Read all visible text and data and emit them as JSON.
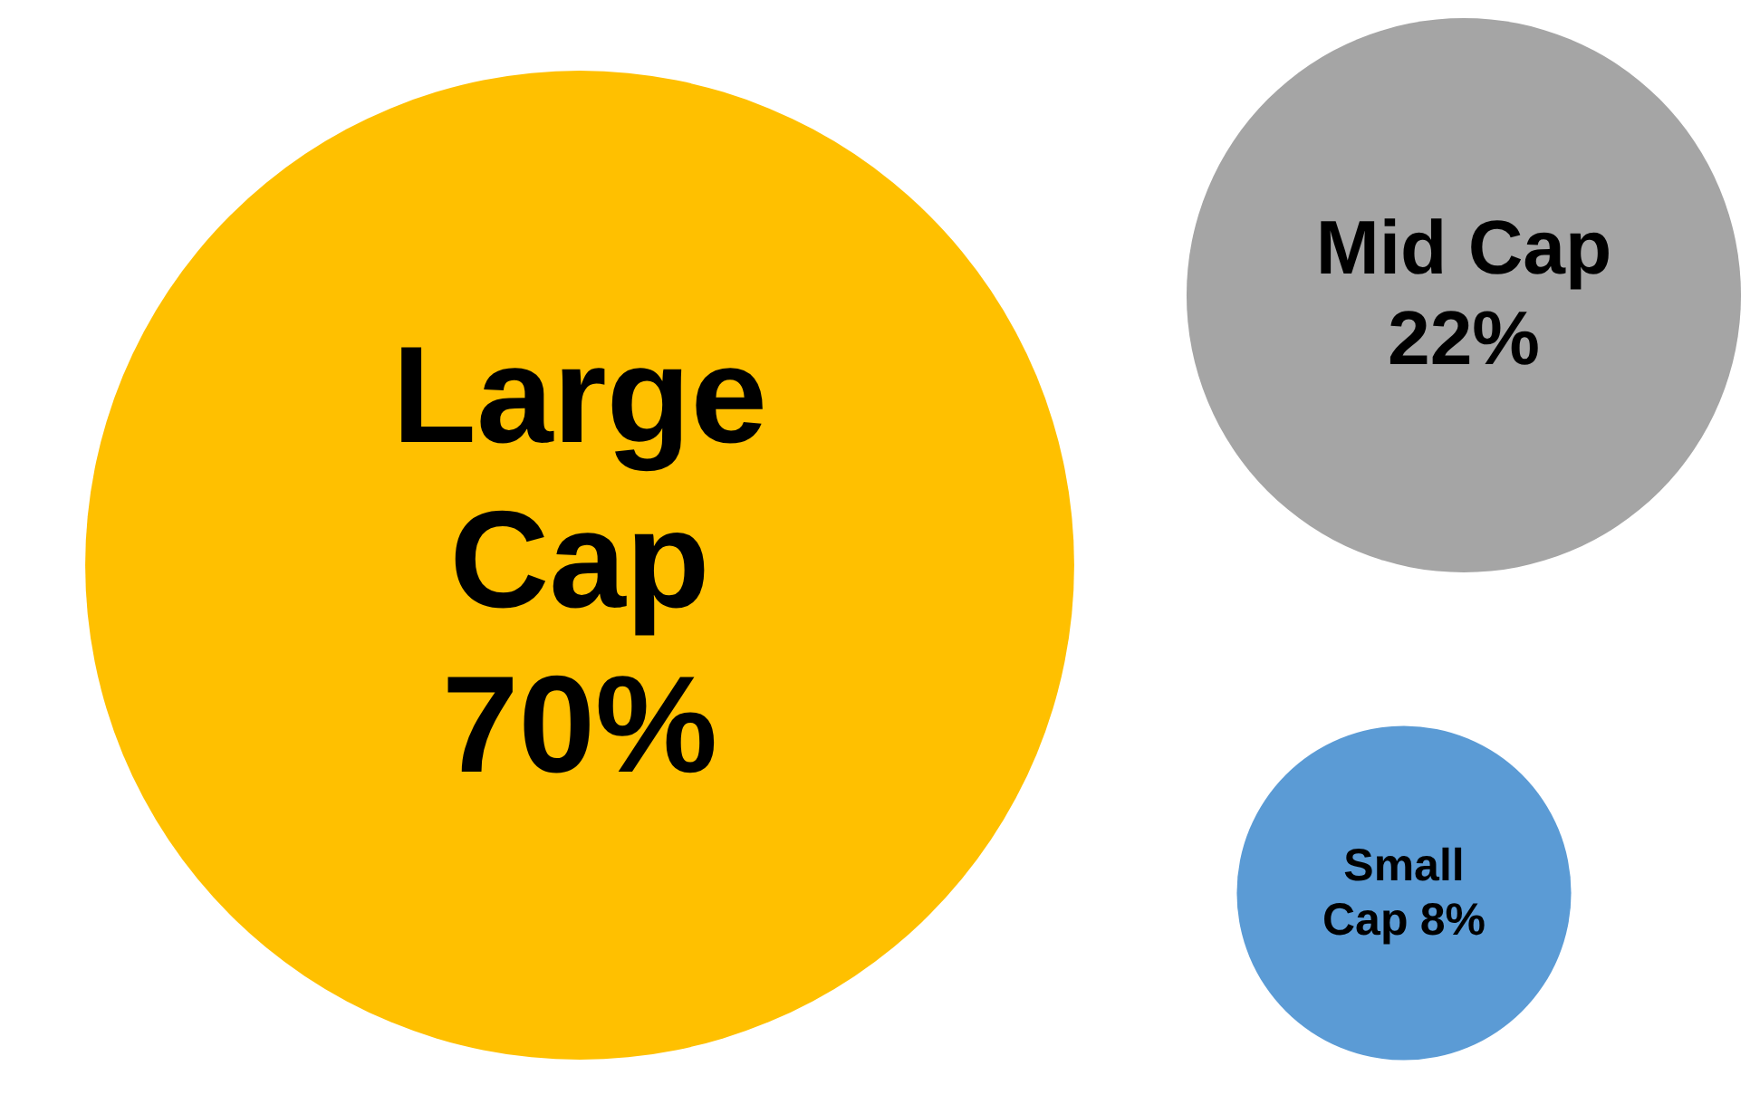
{
  "chart_data": {
    "type": "other",
    "categories": [
      "Large Cap",
      "Mid Cap",
      "Small Cap"
    ],
    "values": [
      70,
      22,
      8
    ],
    "value_labels": [
      "70%",
      "22%",
      "8%"
    ],
    "colors": [
      "#ffc000",
      "#a5a5a5",
      "#5b9bd5"
    ]
  }
}
